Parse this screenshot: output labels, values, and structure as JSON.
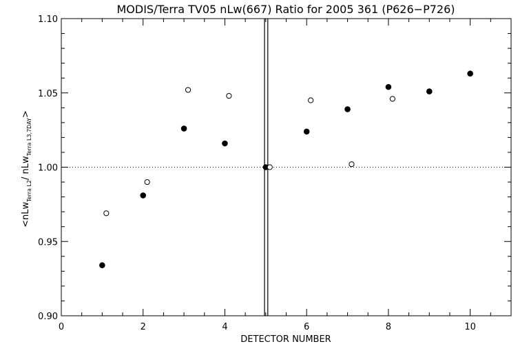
{
  "chart_data": {
    "type": "scatter",
    "title": "MODIS/Terra TV05 nLw(667) Ratio for 2005 361 (P626−P726)",
    "xlabel": "DETECTOR NUMBER",
    "ylabel_parts": {
      "open": "<nLw",
      "sub1": "Terra L2",
      "slash": "/ nLw",
      "sub2": "Terra L3,7DAY",
      "close": ">"
    },
    "xlim": [
      0,
      11
    ],
    "ylim": [
      0.9,
      1.1
    ],
    "x_ticks": [
      0,
      2,
      4,
      6,
      8,
      10
    ],
    "x_tick_labels": [
      "0",
      "2",
      "4",
      "6",
      "8",
      "10"
    ],
    "y_ticks": [
      0.9,
      0.95,
      1.0,
      1.05,
      1.1
    ],
    "y_tick_labels": [
      "0.90",
      "0.95",
      "1.00",
      "1.05",
      "1.10"
    ],
    "reference_line_y": 1.0,
    "vertical_lines_x": [
      4.97,
      5.05
    ],
    "series": [
      {
        "marker": "filled-circle",
        "x": [
          1,
          2,
          3,
          4,
          5,
          6,
          7,
          8,
          9,
          10
        ],
        "y": [
          0.934,
          0.981,
          1.026,
          1.016,
          1.0,
          1.024,
          1.039,
          1.054,
          1.051,
          1.063
        ]
      },
      {
        "marker": "open-circle",
        "x": [
          1.1,
          2.1,
          3.1,
          4.1,
          5.1,
          6.1,
          7.1,
          8.1
        ],
        "y": [
          0.969,
          0.99,
          1.052,
          1.048,
          1.0,
          1.045,
          1.002,
          1.046
        ]
      }
    ]
  }
}
